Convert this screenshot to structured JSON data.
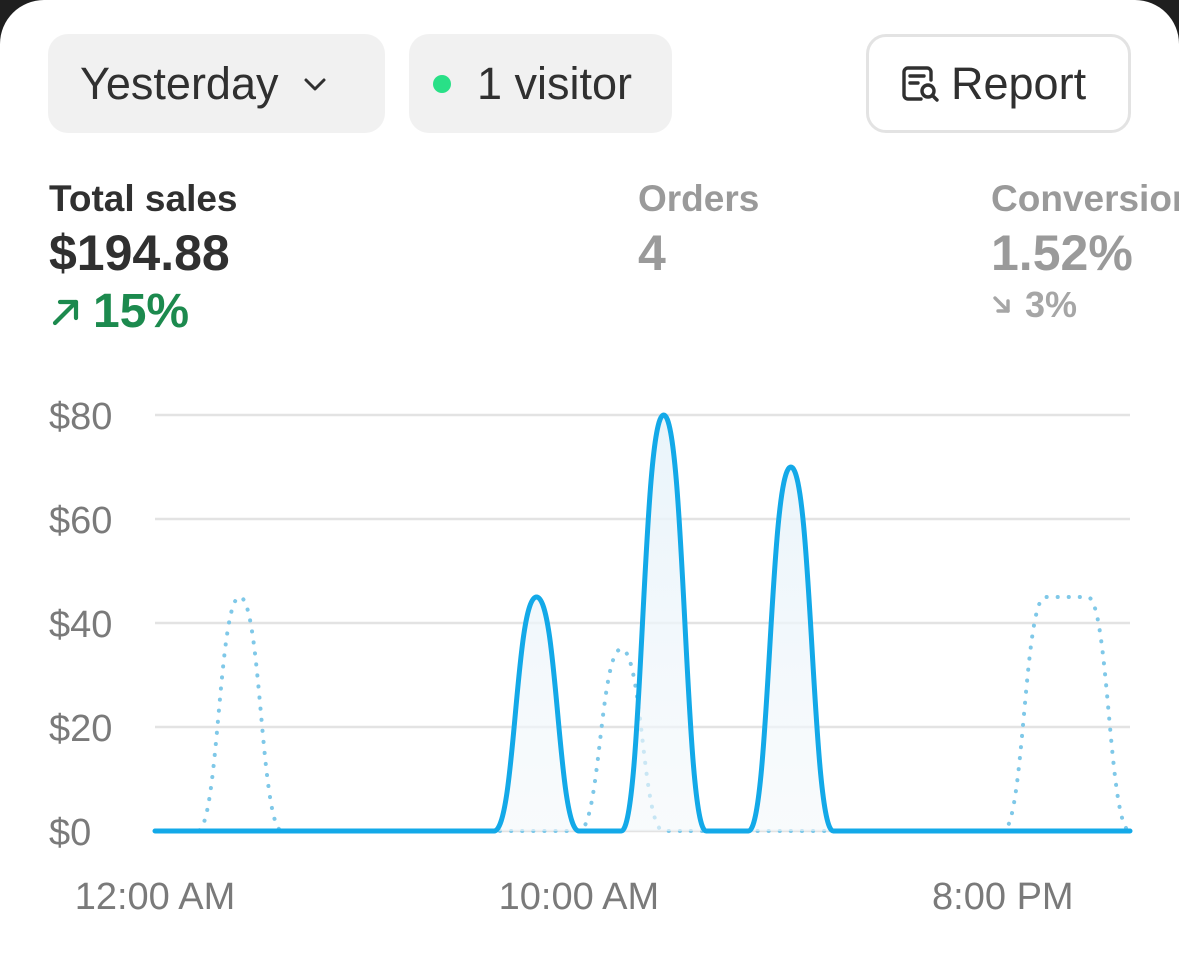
{
  "filters": {
    "date_range": "Yesterday",
    "visitors": "1 visitor",
    "report_label": "Report"
  },
  "metrics": [
    {
      "label": "Total sales",
      "value": "$194.88",
      "delta": "15%",
      "direction": "up"
    },
    {
      "label": "Orders",
      "value": "4"
    },
    {
      "label": "Conversion",
      "value": "1.52%",
      "delta": "3%",
      "direction": "down"
    }
  ],
  "colors": {
    "accent": "#13a9e8",
    "comparison": "#7fc8e8",
    "positive": "#1c8a4e",
    "live_dot": "#29e087"
  },
  "icons": {
    "date_chevron": "chevron-down-icon",
    "report": "report-search-icon",
    "delta_up": "arrow-up-right-icon",
    "delta_down": "arrow-down-right-icon"
  },
  "chart_data": {
    "type": "line",
    "y_ticks": [
      "$80",
      "$60",
      "$40",
      "$20",
      "$0"
    ],
    "y_values": [
      80,
      60,
      40,
      20,
      0
    ],
    "x_ticks": [
      "12:00 AM",
      "10:00 AM",
      "8:00 PM"
    ],
    "x_tick_hours": [
      0,
      10,
      20
    ],
    "ylim": [
      0,
      80
    ],
    "xlim": [
      0,
      23
    ],
    "grid": true,
    "series": [
      {
        "style": "solid",
        "x": [
          0,
          8,
          9,
          10,
          11,
          12,
          13,
          14,
          15,
          16,
          17,
          23
        ],
        "y": [
          0,
          0,
          45,
          0,
          0,
          80,
          0,
          0,
          70,
          0,
          0,
          0
        ]
      },
      {
        "style": "dotted",
        "x": [
          0,
          1,
          2,
          3,
          4,
          10,
          11,
          12,
          13,
          14,
          20,
          21,
          22,
          23
        ],
        "y": [
          0,
          0,
          45,
          0,
          0,
          0,
          35,
          0,
          0,
          0,
          0,
          45,
          45,
          0
        ]
      }
    ]
  }
}
